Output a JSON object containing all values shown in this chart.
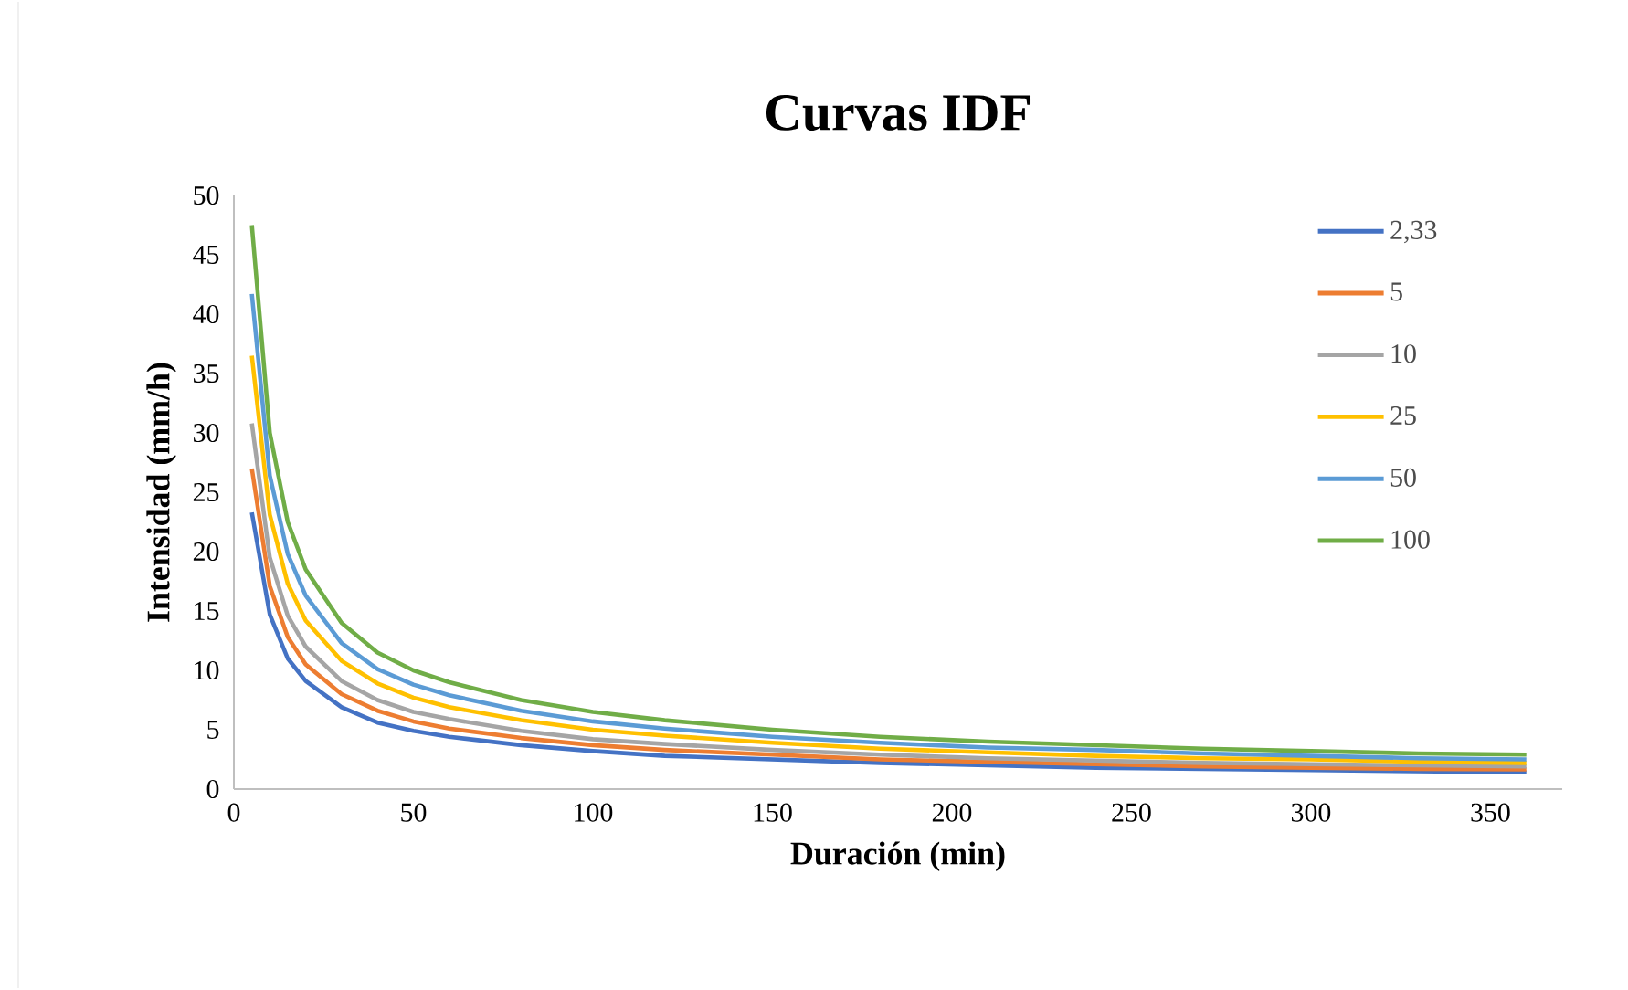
{
  "chart_data": {
    "type": "line",
    "title": "Curvas IDF",
    "xlabel": "Duración (min)",
    "ylabel": "Intensidad (mm/h)",
    "x": [
      5,
      10,
      15,
      20,
      30,
      40,
      50,
      60,
      80,
      100,
      120,
      150,
      180,
      210,
      240,
      270,
      300,
      330,
      360
    ],
    "xlim": [
      0,
      370
    ],
    "xticks": [
      0,
      50,
      100,
      150,
      200,
      250,
      300,
      350
    ],
    "ylim": [
      0,
      50
    ],
    "yticks": [
      0,
      5,
      10,
      15,
      20,
      25,
      30,
      35,
      40,
      45,
      50
    ],
    "grid": false,
    "legend": "right",
    "marker": "none",
    "line_style": "solid",
    "series": [
      {
        "name": "2,33",
        "color": "#4472c4",
        "values": [
          23.3,
          14.7,
          11.0,
          9.1,
          6.9,
          5.6,
          4.9,
          4.4,
          3.7,
          3.2,
          2.8,
          2.5,
          2.2,
          2.0,
          1.8,
          1.7,
          1.6,
          1.5,
          1.4
        ]
      },
      {
        "name": "5",
        "color": "#ed7d31",
        "values": [
          27,
          17.1,
          12.8,
          10.5,
          8.0,
          6.6,
          5.7,
          5.1,
          4.3,
          3.7,
          3.3,
          2.9,
          2.5,
          2.3,
          2.1,
          1.9,
          1.8,
          1.7,
          1.65
        ]
      },
      {
        "name": "10",
        "color": "#a5a5a5",
        "values": [
          30.8,
          19.5,
          14.6,
          12.0,
          9.1,
          7.5,
          6.5,
          5.9,
          4.9,
          4.2,
          3.8,
          3.3,
          2.9,
          2.6,
          2.4,
          2.2,
          2.1,
          2.0,
          1.9
        ]
      },
      {
        "name": "25",
        "color": "#ffc000",
        "values": [
          36.5,
          23.1,
          17.3,
          14.2,
          10.8,
          8.9,
          7.7,
          6.9,
          5.8,
          5.0,
          4.5,
          3.9,
          3.4,
          3.1,
          2.8,
          2.6,
          2.5,
          2.3,
          2.2
        ]
      },
      {
        "name": "50",
        "color": "#5b9bd5",
        "values": [
          41.7,
          26.4,
          19.8,
          16.3,
          12.3,
          10.1,
          8.8,
          7.9,
          6.6,
          5.7,
          5.1,
          4.4,
          3.9,
          3.5,
          3.3,
          3.0,
          2.8,
          2.6,
          2.5
        ]
      },
      {
        "name": "100",
        "color": "#70ad47",
        "values": [
          47.5,
          30,
          22.5,
          18.5,
          14,
          11.5,
          10,
          9,
          7.5,
          6.5,
          5.8,
          5.0,
          4.4,
          4.0,
          3.7,
          3.4,
          3.2,
          3.0,
          2.9
        ]
      }
    ]
  }
}
